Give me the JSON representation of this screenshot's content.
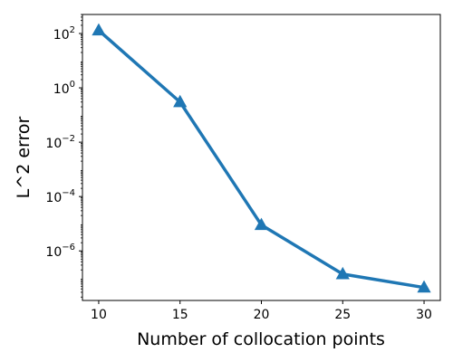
{
  "chart_data": {
    "type": "line",
    "title": "",
    "xlabel": "Number of collocation points",
    "ylabel": "L^2 error",
    "yscale": "log",
    "grid": false,
    "legend": "none",
    "xlim": [
      9,
      31
    ],
    "ylim": [
      1.5e-08,
      500
    ],
    "x_ticks": [
      10,
      15,
      20,
      25,
      30
    ],
    "y_ticks": [
      {
        "value": 100,
        "mantissa": "10",
        "exponent": "2"
      },
      {
        "value": 1,
        "mantissa": "10",
        "exponent": "0"
      },
      {
        "value": 0.01,
        "mantissa": "10",
        "exponent": "−2"
      },
      {
        "value": 0.0001,
        "mantissa": "10",
        "exponent": "−4"
      },
      {
        "value": 1e-06,
        "mantissa": "10",
        "exponent": "−6"
      }
    ],
    "series": [
      {
        "color": "#1f77b4",
        "marker": "triangle",
        "x": [
          10,
          15,
          20,
          25,
          30
        ],
        "y": [
          130,
          0.3,
          9e-06,
          1.4e-07,
          4.5e-08
        ]
      }
    ]
  }
}
